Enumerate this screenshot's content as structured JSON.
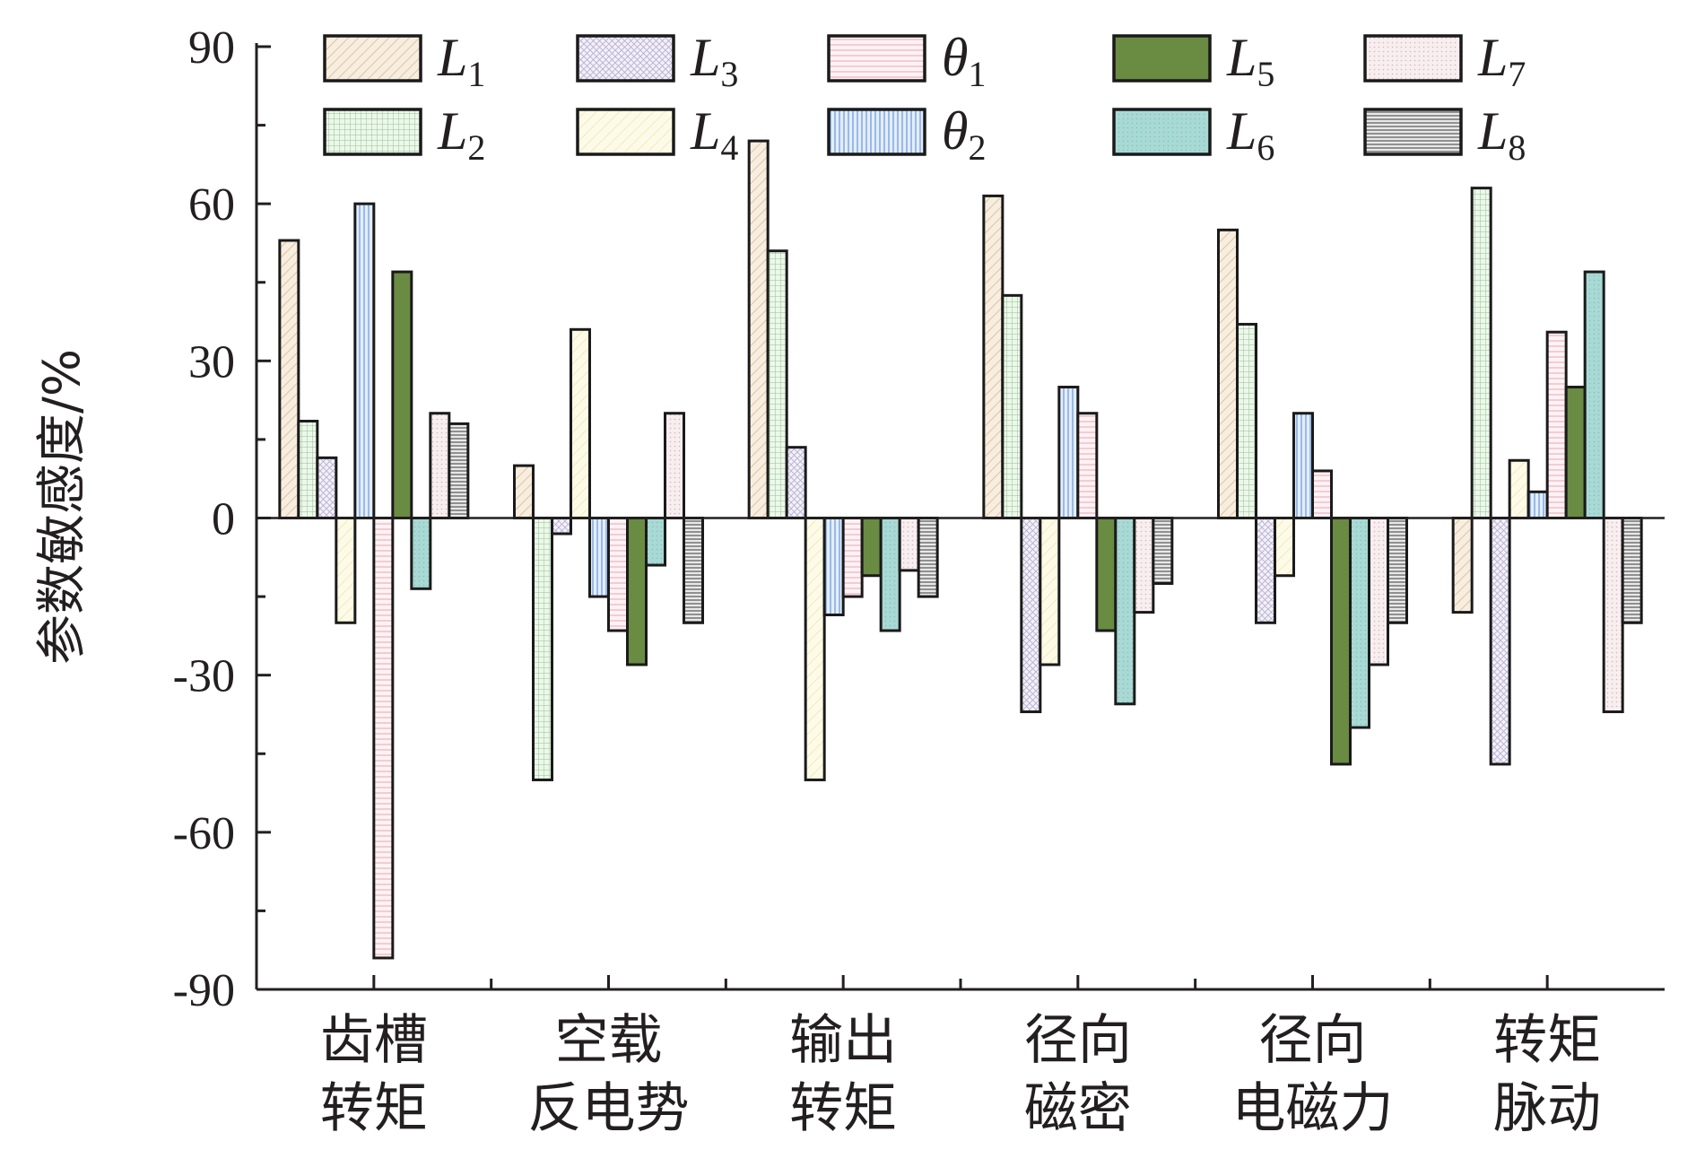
{
  "chart_data": {
    "type": "bar",
    "title": "",
    "xlabel": "",
    "ylabel": "参数敏感度/%",
    "ylim": [
      -90,
      90
    ],
    "yticks": [
      "90",
      "60",
      "30",
      "0",
      "-30",
      "-60",
      "-90"
    ],
    "grid": false,
    "legend_position": "top",
    "categories": [
      [
        "齿槽",
        "转矩"
      ],
      [
        "空载",
        "反电势"
      ],
      [
        "输出",
        "转矩"
      ],
      [
        "径向",
        "磁密"
      ],
      [
        "径向",
        "电磁力"
      ],
      [
        "转矩",
        "脉动"
      ]
    ],
    "series": [
      {
        "name": "L1",
        "base": "L",
        "sub": "1",
        "fill": "#f6eee0",
        "pattern": "diag-orange",
        "values": [
          53,
          10,
          72,
          61.5,
          55,
          -18
        ]
      },
      {
        "name": "L2",
        "base": "L",
        "sub": "2",
        "fill": "#e8f4e6",
        "pattern": "grid-green",
        "values": [
          18.5,
          -50,
          51,
          42.5,
          37,
          63
        ]
      },
      {
        "name": "L3",
        "base": "L",
        "sub": "3",
        "fill": "#f0eef6",
        "pattern": "cross-purple",
        "values": [
          11.5,
          -3,
          13.5,
          -37,
          -20,
          -47
        ]
      },
      {
        "name": "L4",
        "base": "L",
        "sub": "4",
        "fill": "#fdfbe8",
        "pattern": "diag-yellow",
        "values": [
          -20,
          36,
          -50,
          -28,
          -11,
          11
        ]
      },
      {
        "name": "θ2",
        "base": "θ",
        "sub": "2",
        "fill": "#dfe9f8",
        "pattern": "vert-blue",
        "values": [
          60,
          -15,
          -18.5,
          25,
          20,
          5
        ]
      },
      {
        "name": "θ1",
        "base": "θ",
        "sub": "1",
        "fill": "#fdf0f2",
        "pattern": "horiz-pink",
        "values": [
          -84,
          -21.5,
          -15,
          20,
          9,
          35.5
        ]
      },
      {
        "name": "L5",
        "base": "L",
        "sub": "5",
        "fill": "#6a8b42",
        "pattern": "none",
        "values": [
          47,
          -28,
          -11,
          -21.5,
          -47,
          25
        ]
      },
      {
        "name": "L6",
        "base": "L",
        "sub": "6",
        "fill": "#a9d9d4",
        "pattern": "dots-teal",
        "values": [
          -13.5,
          -9,
          -21.5,
          -35.5,
          -40,
          47
        ]
      },
      {
        "name": "L7",
        "base": "L",
        "sub": "7",
        "fill": "#f6ecee",
        "pattern": "dots-pink",
        "values": [
          20,
          20,
          -10,
          -18,
          -28,
          -37
        ]
      },
      {
        "name": "L8",
        "base": "L",
        "sub": "8",
        "fill": "#d6d6d6",
        "pattern": "horiz-gray",
        "values": [
          18,
          -20,
          -15,
          -12.5,
          -20,
          -20
        ]
      }
    ],
    "legend_order": [
      "L1",
      "L3",
      "θ1",
      "L5",
      "L7",
      "L2",
      "L4",
      "θ2",
      "L6",
      "L8"
    ]
  },
  "colors": {
    "axis": "#231f20",
    "bar_stroke": "#1a1a1a"
  }
}
